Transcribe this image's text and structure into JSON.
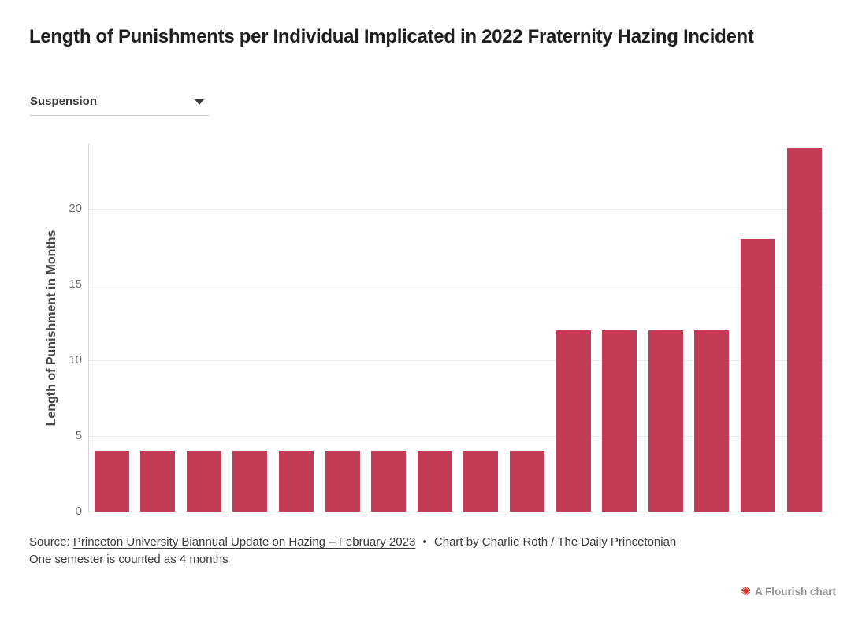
{
  "page": {
    "title": "Length of Punishments per Individual Implicated in 2022 Fraternity Hazing Incident"
  },
  "controls": {
    "filter_dropdown": {
      "selected": "Suspension",
      "chevron_icon": "chevron-down"
    }
  },
  "chart_data": {
    "type": "bar",
    "title": "Length of Punishments per Individual Implicated in 2022 Fraternity Hazing Incident",
    "xlabel": "",
    "ylabel": "Length of Punishment in Months",
    "series": [
      {
        "name": "Suspension",
        "values": [
          4,
          4,
          4,
          4,
          4,
          4,
          4,
          4,
          4,
          4,
          12,
          12,
          12,
          12,
          18,
          24
        ]
      }
    ],
    "yticks": [
      0,
      5,
      10,
      15,
      20
    ],
    "ylim": [
      0,
      24.4
    ],
    "grid": "horizontal",
    "legend": "none",
    "x_tick_labels": "none",
    "bar_color": "#c23c56"
  },
  "footer": {
    "source_prefix": "Source:",
    "source_link_text": "Princeton University Biannual Update on Hazing – February 2023",
    "separator": "•",
    "credit_text": "Chart by Charlie Roth / The Daily Princetonian",
    "note": "One semester is counted as 4 months"
  },
  "attribution": {
    "label": "A Flourish chart",
    "icon": "starburst",
    "icon_glyph": "✺",
    "icon_color": "#cf3327",
    "label_color": "#909090"
  }
}
